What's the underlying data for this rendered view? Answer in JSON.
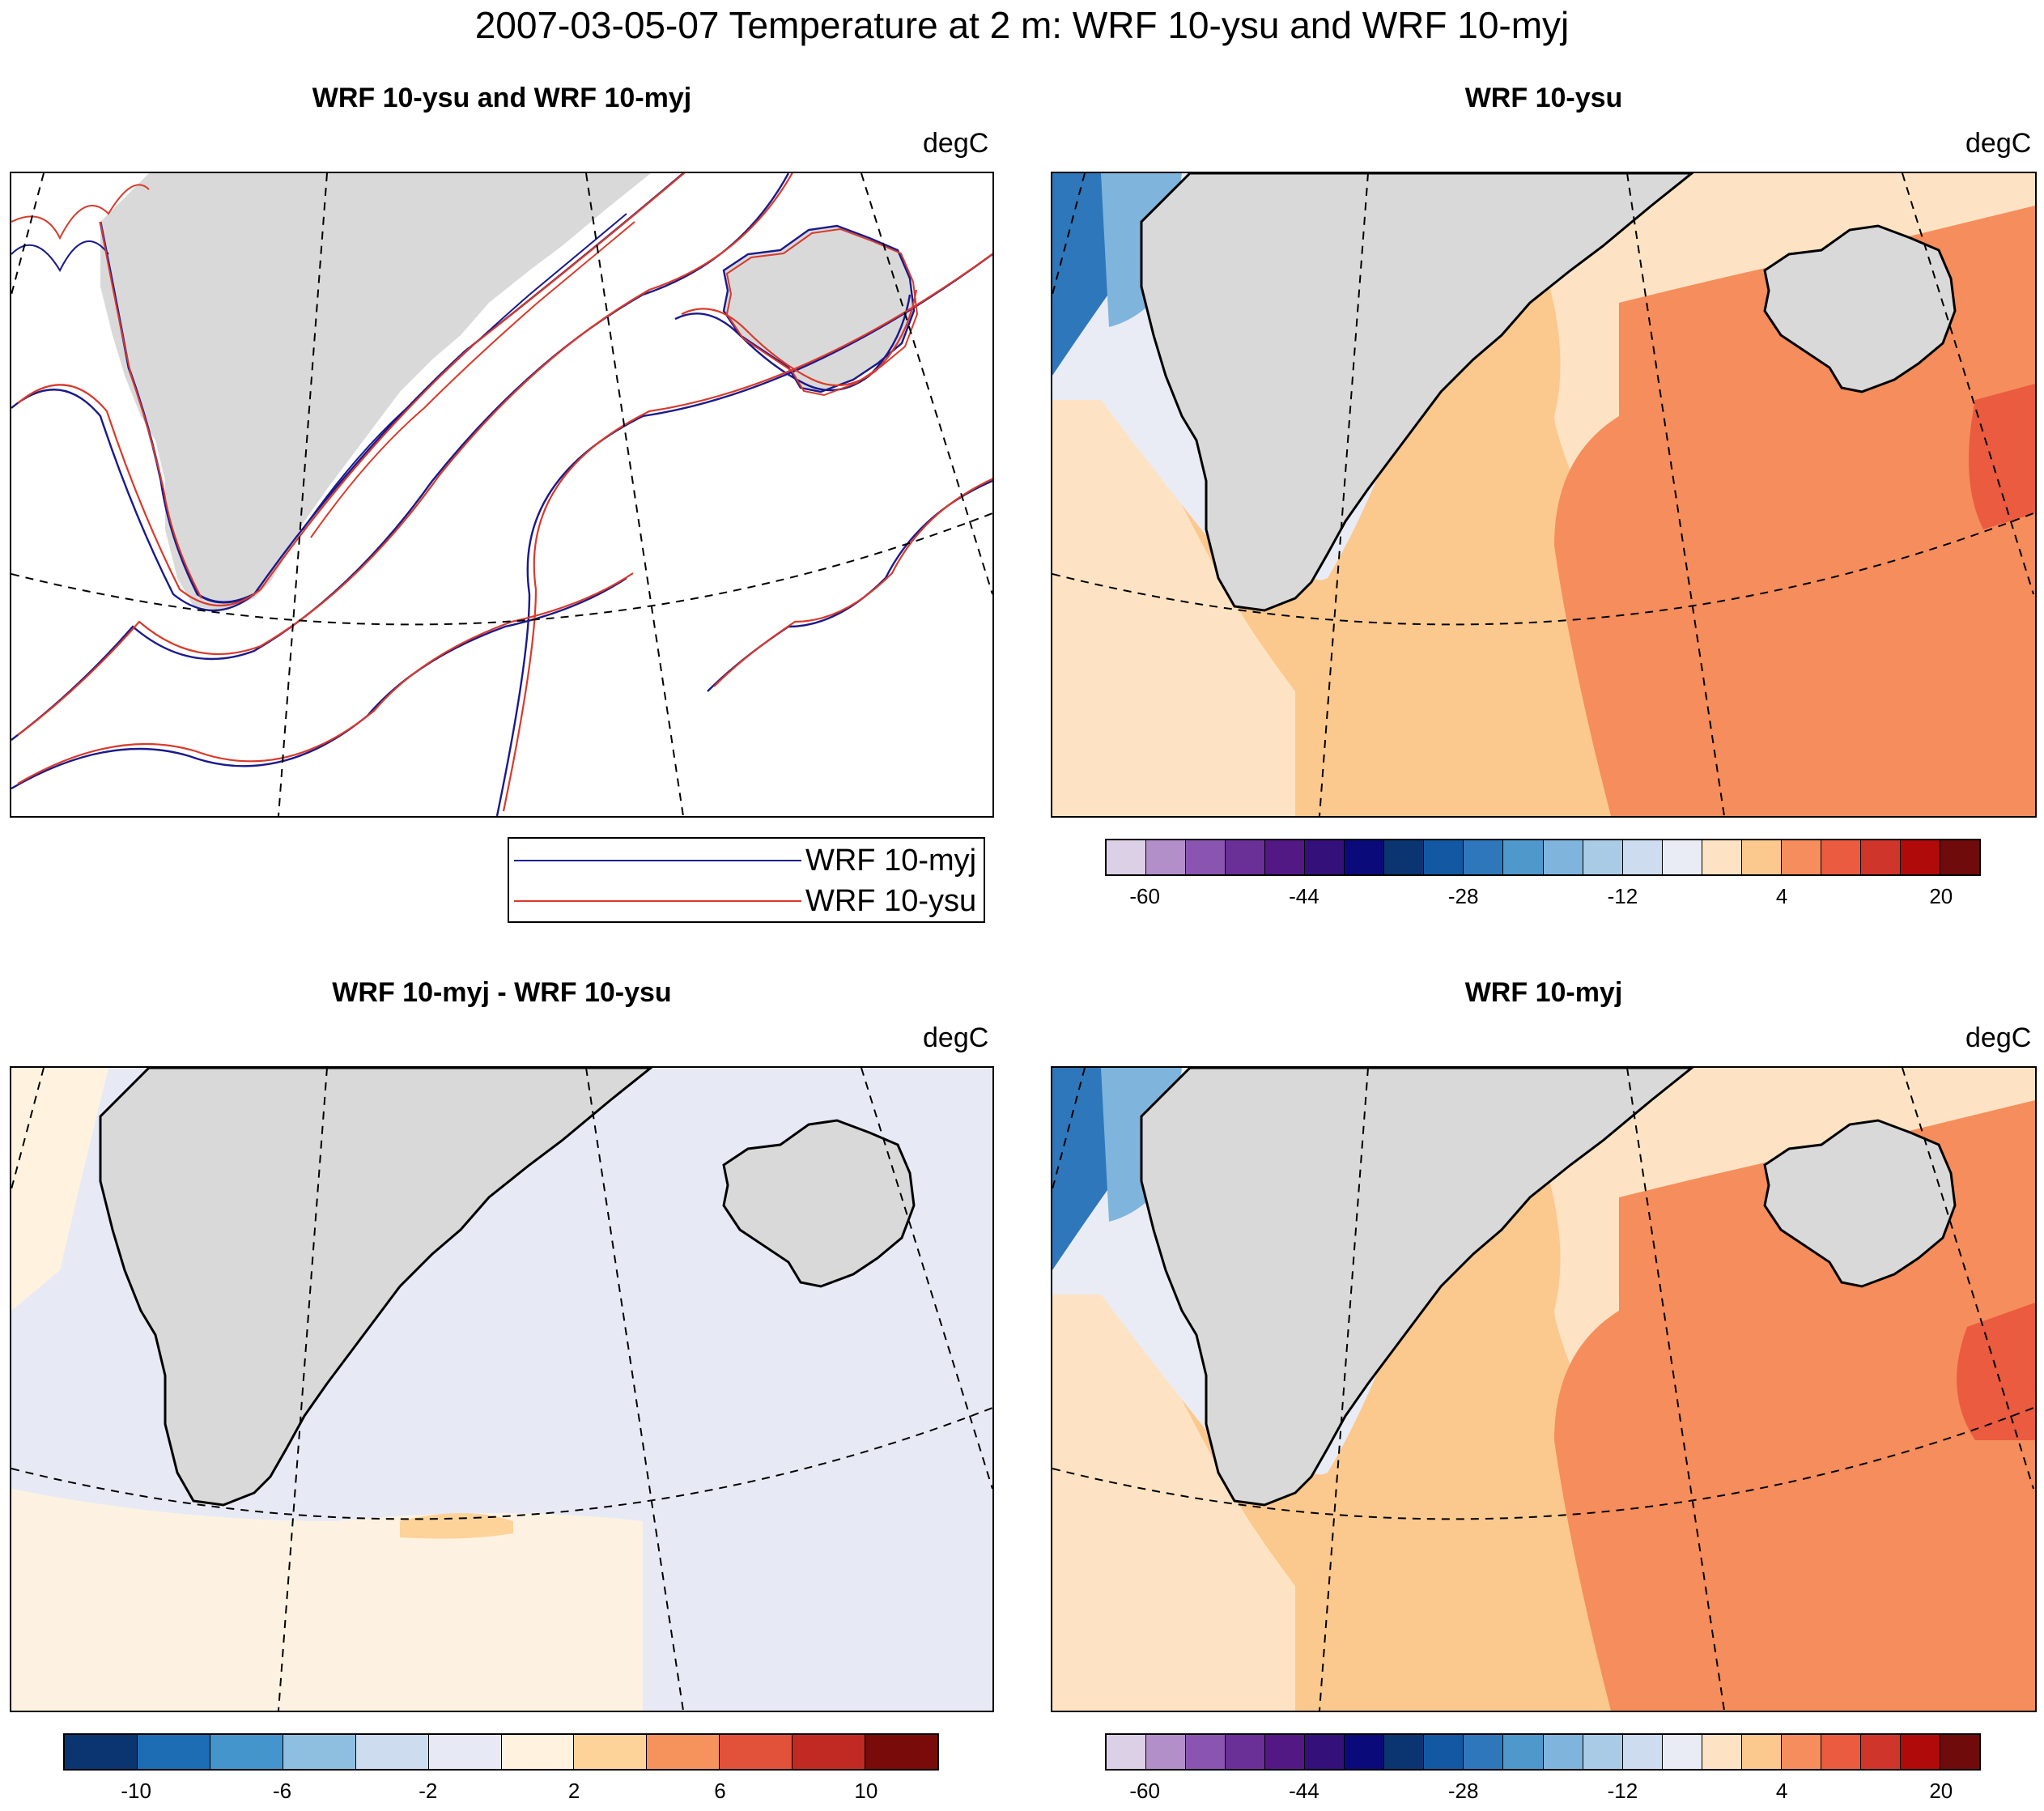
{
  "figure": {
    "title": "2007-03-05-07 Temperature at 2 m: WRF 10-ysu and WRF 10-myj"
  },
  "panels": {
    "contour": {
      "title": "WRF 10-ysu and WRF 10-myj",
      "unit": "degC"
    },
    "ysu": {
      "title": "WRF 10-ysu",
      "unit": "degC"
    },
    "diff": {
      "title": "WRF 10-myj - WRF 10-ysu",
      "unit": "degC"
    },
    "myj": {
      "title": "WRF 10-myj",
      "unit": "degC"
    }
  },
  "legend": {
    "entries": [
      {
        "label": "WRF 10-myj",
        "color": "#1a1a8c"
      },
      {
        "label": "WRF 10-ysu",
        "color": "#d93a2b"
      }
    ]
  },
  "colorbars": {
    "temperature": {
      "colors": [
        "#dcd0e6",
        "#b38fca",
        "#8a55b0",
        "#6b2f98",
        "#521883",
        "#34117a",
        "#0a0a7a",
        "#0b3570",
        "#1258a3",
        "#2f77bb",
        "#4f98cc",
        "#7fb4dc",
        "#a9cbe6",
        "#cddcee",
        "#e9ecf5",
        "#fde3c3",
        "#fbc88e",
        "#f68d5c",
        "#ea5b40",
        "#d0352b",
        "#b00a0a",
        "#6f0b0b"
      ],
      "tick_labels": [
        "-60",
        "-44",
        "-28",
        "-12",
        "4",
        "20"
      ]
    },
    "difference": {
      "colors": [
        "#0b3570",
        "#1c6db3",
        "#4495cb",
        "#8fbfe0",
        "#cddcee",
        "#e7eaf5",
        "#fff3e0",
        "#fdd39a",
        "#f6935d",
        "#e2513a",
        "#c12a22",
        "#7a0b0b"
      ],
      "tick_labels": [
        "-10",
        "-6",
        "-2",
        "2",
        "6",
        "10"
      ]
    }
  },
  "map_colors": {
    "land": "#d9d9d9",
    "coast": "#000000",
    "warm_sea": "#f68d5c",
    "mild_sea": "#fbc88e",
    "cool_sea": "#fde3c3",
    "ice_edge": "#e9ecf5",
    "cold": "#7fb4dc",
    "very_cold": "#2f77bb",
    "hot_spot": "#ea5b40",
    "diff_base": "#e7eaf5",
    "diff_warm": "#fff3e0",
    "diff_cold": "#1c6db3"
  }
}
